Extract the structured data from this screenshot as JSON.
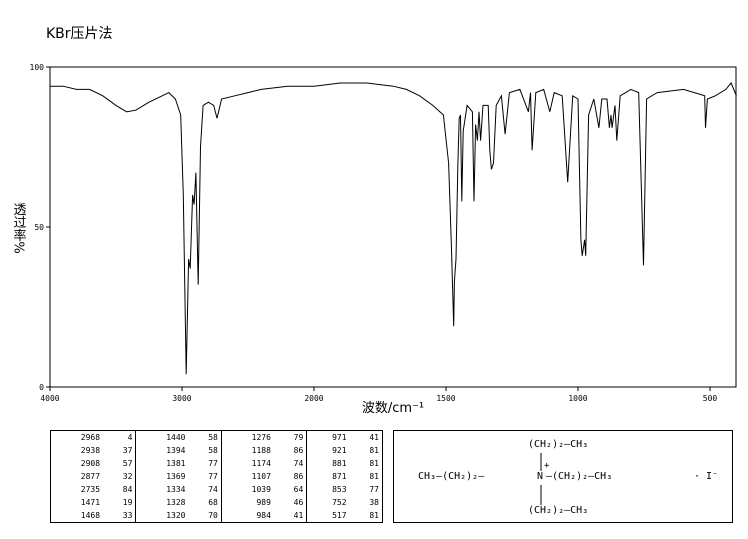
{
  "chart_data": {
    "type": "line",
    "title": "KBr压片法",
    "x_label": "波数/cm⁻¹",
    "y_label": "透过率%",
    "xlim": [
      4000,
      400
    ],
    "ylim": [
      0,
      100
    ],
    "xticks": [
      4000,
      3000,
      2000,
      1500,
      1000,
      500
    ],
    "yticks": [
      0,
      50,
      100
    ],
    "color": "#000000",
    "x": [
      4000,
      3900,
      3800,
      3700,
      3600,
      3500,
      3420,
      3350,
      3250,
      3150,
      3100,
      3050,
      3010,
      2990,
      2968,
      2950,
      2938,
      2920,
      2908,
      2895,
      2877,
      2860,
      2840,
      2800,
      2760,
      2735,
      2700,
      2600,
      2500,
      2400,
      2200,
      2000,
      1900,
      1800,
      1700,
      1650,
      1600,
      1550,
      1510,
      1490,
      1480,
      1471,
      1468,
      1462,
      1455,
      1450,
      1445,
      1440,
      1435,
      1420,
      1400,
      1394,
      1388,
      1381,
      1375,
      1369,
      1360,
      1340,
      1334,
      1328,
      1320,
      1310,
      1290,
      1276,
      1260,
      1220,
      1188,
      1180,
      1174,
      1160,
      1130,
      1107,
      1090,
      1060,
      1039,
      1020,
      1000,
      989,
      984,
      975,
      971,
      960,
      940,
      921,
      910,
      890,
      881,
      875,
      871,
      860,
      853,
      840,
      800,
      770,
      752,
      740,
      700,
      600,
      520,
      517,
      510,
      480,
      440,
      420,
      400
    ],
    "values": [
      94,
      94,
      93,
      93,
      91,
      88,
      86,
      86.5,
      89,
      91,
      92,
      90,
      85,
      60,
      4,
      40,
      37,
      60,
      57,
      67,
      32,
      75,
      88,
      89,
      88,
      84,
      90,
      91,
      92,
      93,
      94,
      94,
      95,
      95,
      94,
      93,
      91,
      88,
      85,
      70,
      45,
      19,
      33,
      40,
      70,
      84,
      85,
      58,
      80,
      88,
      86,
      58,
      82,
      77,
      86,
      77,
      88,
      88,
      74,
      68,
      70,
      88,
      91,
      79,
      92,
      93,
      86,
      92,
      74,
      92,
      93,
      86,
      92,
      91,
      64,
      91,
      90,
      46,
      41,
      46,
      41,
      85,
      90,
      81,
      90,
      90,
      81,
      85,
      81,
      88,
      77,
      91,
      93,
      92,
      38,
      90,
      92,
      93,
      91,
      81,
      90,
      91,
      93,
      95,
      91
    ]
  },
  "peak_table": {
    "rows": [
      [
        "2968",
        "4",
        "1440",
        "58",
        "1276",
        "79",
        "971",
        "41"
      ],
      [
        "2938",
        "37",
        "1394",
        "58",
        "1188",
        "86",
        "921",
        "81"
      ],
      [
        "2908",
        "57",
        "1381",
        "77",
        "1174",
        "74",
        "881",
        "81"
      ],
      [
        "2877",
        "32",
        "1369",
        "77",
        "1107",
        "86",
        "871",
        "81"
      ],
      [
        "2735",
        "84",
        "1334",
        "74",
        "1039",
        "64",
        "853",
        "77"
      ],
      [
        "1471",
        "19",
        "1328",
        "68",
        "989",
        "46",
        "752",
        "38"
      ],
      [
        "1468",
        "33",
        "1320",
        "70",
        "984",
        "41",
        "517",
        "81"
      ]
    ]
  },
  "structure": {
    "top": "(CH₂)₂—CH₃",
    "left": "CH₃—(CH₂)₂—",
    "center": "N",
    "charge": "+",
    "right": "—(CH₂)₂—CH₃",
    "bottom": "(CH₂)₂—CH₃",
    "anion": "· I⁻"
  }
}
